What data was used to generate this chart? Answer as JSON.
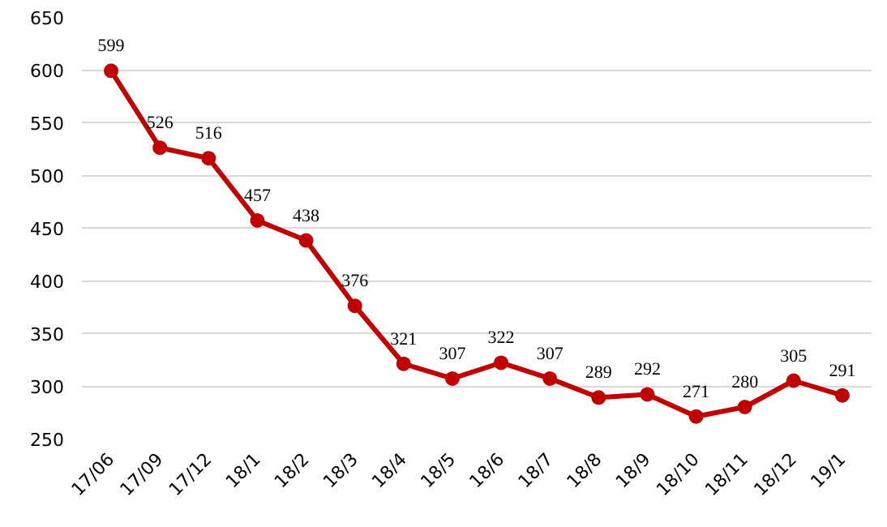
{
  "chart_data": {
    "type": "line",
    "categories": [
      "17/06",
      "17/09",
      "17/12",
      "18/1",
      "18/2",
      "18/3",
      "18/4",
      "18/5",
      "18/6",
      "18/7",
      "18/8",
      "18/9",
      "18/10",
      "18/11",
      "18/12",
      "19/1"
    ],
    "series": [
      {
        "color": "#c00000",
        "values": [
          599,
          526,
          516,
          457,
          438,
          376,
          321,
          307,
          322,
          307,
          289,
          292,
          271,
          280,
          305,
          291
        ]
      }
    ],
    "ylim": [
      250,
      650
    ],
    "yticks": [
      250,
      300,
      350,
      400,
      450,
      500,
      550,
      600,
      650
    ],
    "grid": "y",
    "marker": "circle",
    "data_labels": true
  }
}
